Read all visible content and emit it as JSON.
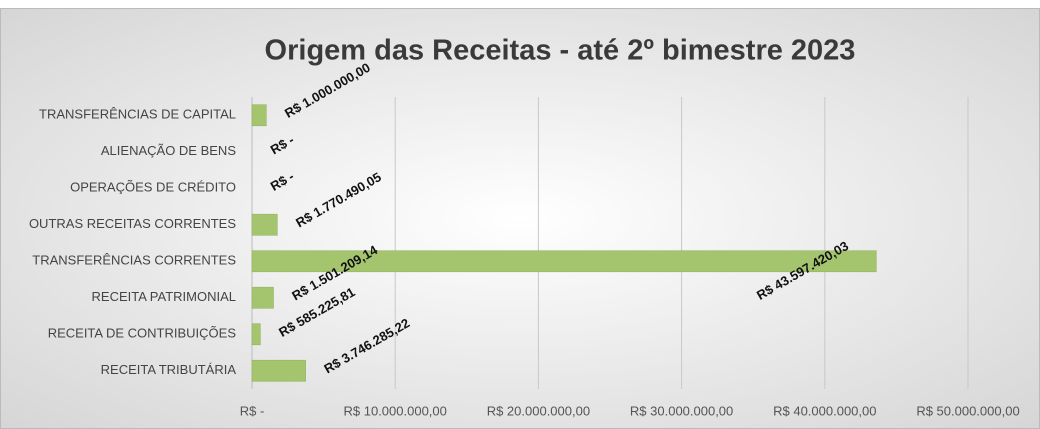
{
  "chart_data": {
    "type": "bar",
    "orientation": "horizontal",
    "title": "Origem das Receitas - até 2º bimestre 2023",
    "categories": [
      "TRANSFERÊNCIAS DE CAPITAL",
      "ALIENAÇÃO DE BENS",
      "OPERAÇÕES DE CRÉDITO",
      "OUTRAS RECEITAS CORRENTES",
      "TRANSFERÊNCIAS CORRENTES",
      "RECEITA PATRIMONIAL",
      "RECEITA DE CONTRIBUIÇÕES",
      "RECEITA TRIBUTÁRIA"
    ],
    "values": [
      1000000,
      0,
      0,
      1770490.05,
      43597420.03,
      1501209.14,
      585225.81,
      3746285.22
    ],
    "value_labels": [
      "R$ 1.000.000,00",
      "R$ -",
      "R$ -",
      "R$ 1.770.490,05",
      "R$ 43.597.420,03",
      "R$ 1.501.209,14",
      "R$ 585.225,81",
      "R$ 3.746.285,22"
    ],
    "color": "#a4c46e",
    "xlim": [
      0,
      50000000
    ],
    "xticks": [
      {
        "value": 0,
        "label": "R$ -"
      },
      {
        "value": 10000000,
        "label": "R$ 10.000.000,00"
      },
      {
        "value": 20000000,
        "label": "R$ 20.000.000,00"
      },
      {
        "value": 30000000,
        "label": "R$ 30.000.000,00"
      },
      {
        "value": 40000000,
        "label": "R$ 40.000.000,00"
      },
      {
        "value": 50000000,
        "label": "R$ 50.000.000,00"
      }
    ],
    "grid": true
  }
}
